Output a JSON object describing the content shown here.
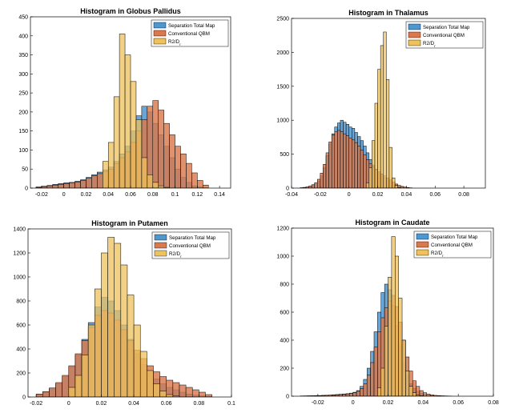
{
  "figure": {
    "series_names": [
      "Separation Total Map",
      "Conventional QBM",
      "R2/D"
    ],
    "series_colors": [
      "#4f97cf",
      "#d9794d",
      "#eec25c"
    ],
    "legend_subscript": "r"
  },
  "chart_data": [
    {
      "type": "histogram",
      "title": "Histogram in Globus Pallidus",
      "xlabel": "",
      "ylabel": "",
      "xlim": [
        -0.03,
        0.15
      ],
      "ylim": [
        0,
        450
      ],
      "xticks": [
        -0.02,
        0,
        0.02,
        0.04,
        0.06,
        0.08,
        0.1,
        0.12,
        0.14
      ],
      "xtick_labels": [
        "-0.02",
        "0",
        "0.02",
        "0.04",
        "0.06",
        "0.08",
        "0.1",
        "0.12",
        "0.14"
      ],
      "yticks": [
        0,
        50,
        100,
        150,
        200,
        250,
        300,
        350,
        400,
        450
      ],
      "ytick_labels": [
        "0",
        "50",
        "100",
        "150",
        "200",
        "250",
        "300",
        "350",
        "400",
        "450"
      ],
      "legend_position": "top-right",
      "series": [
        {
          "name": "Separation Total Map",
          "bin_start": -0.025,
          "bin_width": 0.005,
          "values": [
            3,
            5,
            7,
            10,
            12,
            14,
            15,
            18,
            22,
            28,
            35,
            42,
            48,
            55,
            70,
            90,
            110,
            150,
            190,
            215,
            200,
            170,
            140,
            110,
            80,
            50,
            28,
            15,
            6,
            3,
            1
          ]
        },
        {
          "name": "Conventional QBM",
          "bin_start": -0.025,
          "bin_width": 0.005,
          "values": [
            2,
            4,
            6,
            8,
            10,
            12,
            14,
            16,
            20,
            26,
            32,
            38,
            44,
            50,
            65,
            80,
            95,
            120,
            150,
            180,
            215,
            230,
            205,
            170,
            140,
            110,
            90,
            65,
            40,
            20,
            8
          ]
        },
        {
          "name": "R2/Dr",
          "bin_start": 0.035,
          "bin_width": 0.005,
          "values": [
            70,
            120,
            240,
            405,
            350,
            280,
            180,
            80,
            35,
            15,
            6,
            2
          ]
        }
      ]
    },
    {
      "type": "histogram",
      "title": "Histogram in Thalamus",
      "xlabel": "",
      "ylabel": "",
      "xlim": [
        -0.04,
        0.095
      ],
      "ylim": [
        0,
        2500
      ],
      "xticks": [
        -0.04,
        -0.02,
        0,
        0.02,
        0.04,
        0.06,
        0.08
      ],
      "xtick_labels": [
        "-0.04",
        "-0.02",
        "0",
        "0.02",
        "0.04",
        "0.06",
        "0.08"
      ],
      "yticks": [
        0,
        500,
        1000,
        1500,
        2000,
        2500
      ],
      "ytick_labels": [
        "0",
        "500",
        "1000",
        "1500",
        "2000",
        "2500"
      ],
      "legend_position": "top-right",
      "series": [
        {
          "name": "Separation Total Map",
          "bin_start": -0.034,
          "bin_width": 0.002,
          "values": [
            5,
            10,
            15,
            25,
            40,
            60,
            100,
            180,
            300,
            480,
            650,
            800,
            900,
            960,
            1000,
            970,
            940,
            900,
            880,
            820,
            760,
            700,
            620,
            520,
            420,
            340,
            280,
            230,
            190,
            150,
            120,
            90,
            60,
            40,
            25,
            15,
            8,
            4,
            2
          ]
        },
        {
          "name": "Conventional QBM",
          "bin_start": -0.034,
          "bin_width": 0.002,
          "values": [
            5,
            10,
            18,
            30,
            50,
            80,
            130,
            220,
            350,
            520,
            680,
            780,
            830,
            850,
            830,
            800,
            770,
            740,
            710,
            670,
            620,
            560,
            490,
            420,
            360,
            310,
            270,
            240,
            210,
            180,
            150,
            120,
            90,
            60,
            40,
            25,
            15,
            8,
            4
          ]
        },
        {
          "name": "R2/Dr",
          "bin_start": 0.012,
          "bin_width": 0.002,
          "values": [
            80,
            300,
            700,
            1250,
            1750,
            2100,
            2300,
            1600,
            600,
            150,
            40,
            10
          ]
        }
      ]
    },
    {
      "type": "histogram",
      "title": "Histogram in Putamen",
      "xlabel": "",
      "ylabel": "",
      "xlim": [
        -0.025,
        0.1
      ],
      "ylim": [
        0,
        1400
      ],
      "xticks": [
        -0.02,
        0,
        0.02,
        0.04,
        0.06,
        0.08,
        0.1
      ],
      "xtick_labels": [
        "-0.02",
        "0",
        "0.02",
        "0.04",
        "0.06",
        "0.08",
        "0.1"
      ],
      "yticks": [
        0,
        200,
        400,
        600,
        800,
        1000,
        1200,
        1400
      ],
      "ytick_labels": [
        "0",
        "200",
        "400",
        "600",
        "800",
        "1000",
        "1200",
        "1400"
      ],
      "legend_position": "top-right",
      "series": [
        {
          "name": "Separation Total Map",
          "bin_start": -0.02,
          "bin_width": 0.004,
          "values": [
            20,
            40,
            70,
            110,
            170,
            250,
            350,
            480,
            620,
            750,
            830,
            800,
            720,
            600,
            480,
            360,
            270,
            200,
            150,
            110,
            80,
            60,
            40,
            25,
            15,
            8,
            4
          ]
        },
        {
          "name": "Conventional QBM",
          "bin_start": -0.02,
          "bin_width": 0.004,
          "values": [
            25,
            45,
            75,
            120,
            180,
            260,
            360,
            470,
            580,
            680,
            720,
            700,
            640,
            560,
            470,
            390,
            320,
            260,
            210,
            170,
            140,
            120,
            100,
            80,
            60,
            40,
            20
          ]
        },
        {
          "name": "R2/Dr",
          "bin_start": 0.0,
          "bin_width": 0.004,
          "values": [
            80,
            180,
            350,
            600,
            900,
            1200,
            1330,
            1280,
            1100,
            850,
            600,
            380,
            220,
            110,
            50,
            20,
            8
          ]
        }
      ]
    },
    {
      "type": "histogram",
      "title": "Histogram in Caudate",
      "xlabel": "",
      "ylabel": "",
      "xlim": [
        -0.035,
        0.08
      ],
      "ylim": [
        0,
        1200
      ],
      "xticks": [
        -0.02,
        0,
        0.02,
        0.04,
        0.06,
        0.08
      ],
      "xtick_labels": [
        "-0.02",
        "0",
        "0.02",
        "0.04",
        "0.06",
        "0.08"
      ],
      "yticks": [
        0,
        200,
        400,
        600,
        800,
        1000,
        1200
      ],
      "ytick_labels": [
        "0",
        "200",
        "400",
        "600",
        "800",
        "1000",
        "1200"
      ],
      "legend_position": "top-right",
      "series": [
        {
          "name": "Separation Total Map",
          "bin_start": -0.03,
          "bin_width": 0.002,
          "values": [
            2,
            2,
            3,
            3,
            4,
            5,
            6,
            7,
            8,
            10,
            12,
            14,
            16,
            18,
            22,
            28,
            40,
            70,
            120,
            200,
            320,
            460,
            600,
            740,
            800,
            760,
            650,
            500,
            360,
            240,
            150,
            90,
            55,
            35,
            20,
            12,
            7,
            4,
            2,
            1,
            1,
            1,
            1
          ]
        },
        {
          "name": "Conventional QBM",
          "bin_start": -0.03,
          "bin_width": 0.002,
          "values": [
            1,
            2,
            2,
            3,
            3,
            4,
            5,
            6,
            7,
            8,
            10,
            12,
            14,
            16,
            20,
            25,
            35,
            55,
            90,
            150,
            240,
            350,
            460,
            560,
            630,
            680,
            720,
            640,
            530,
            400,
            280,
            180,
            110,
            70,
            40,
            25,
            15,
            10,
            6,
            4,
            3,
            2,
            1
          ]
        },
        {
          "name": "R2/Dr",
          "bin_start": 0.014,
          "bin_width": 0.002,
          "values": [
            60,
            200,
            500,
            850,
            1140,
            1000,
            700,
            400,
            180,
            70,
            25,
            8,
            3
          ]
        }
      ]
    }
  ]
}
